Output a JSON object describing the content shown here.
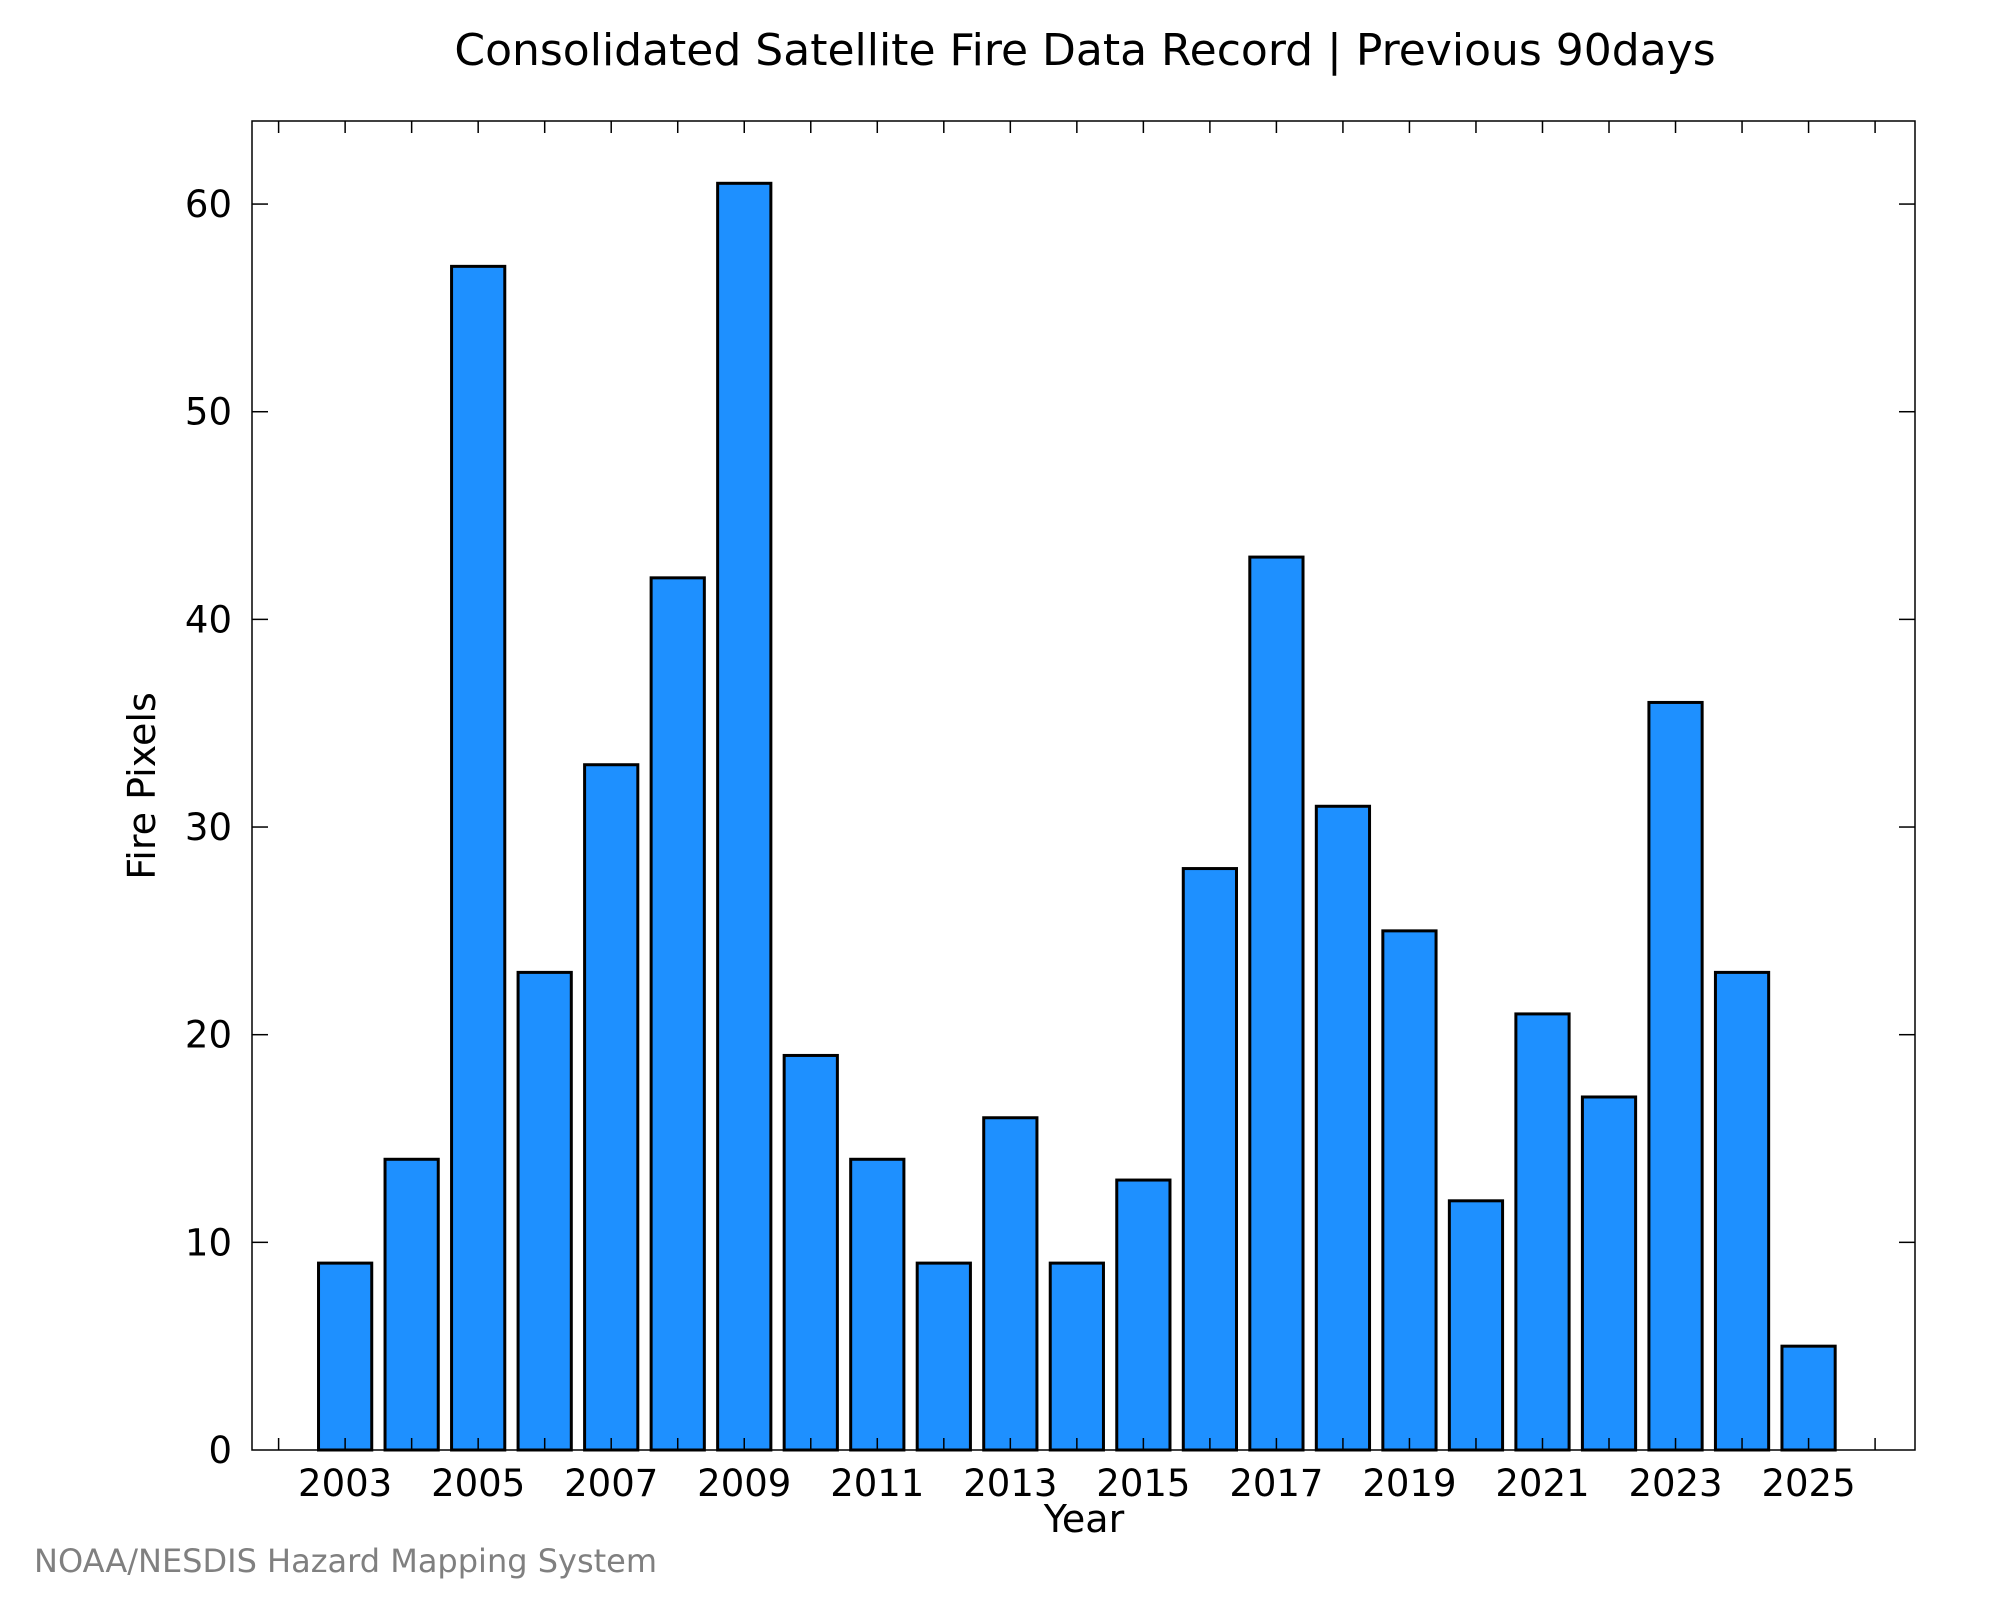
{
  "chart_data": {
    "type": "bar",
    "title": "Consolidated Satellite Fire Data Record | Previous 90days",
    "xlabel": "Year",
    "ylabel": "Fire Pixels",
    "categories": [
      2003,
      2004,
      2005,
      2006,
      2007,
      2008,
      2009,
      2010,
      2011,
      2012,
      2013,
      2014,
      2015,
      2016,
      2017,
      2018,
      2019,
      2020,
      2021,
      2022,
      2023,
      2024,
      2025
    ],
    "values": [
      9,
      14,
      57,
      23,
      33,
      42,
      61,
      19,
      14,
      9,
      16,
      9,
      13,
      28,
      43,
      31,
      25,
      12,
      21,
      17,
      36,
      23,
      5
    ],
    "x_tick_labels": [
      "2003",
      "2005",
      "2007",
      "2009",
      "2011",
      "2013",
      "2015",
      "2017",
      "2019",
      "2021",
      "2023",
      "2025"
    ],
    "y_tick_labels": [
      "0",
      "10",
      "20",
      "30",
      "40",
      "50",
      "60"
    ],
    "ylim": [
      0,
      64
    ],
    "xlim": [
      2001.6,
      2026.6
    ],
    "grid": false,
    "bar_color": "#1e90ff",
    "edge_color": "#000000"
  },
  "footer": "NOAA/NESDIS Hazard Mapping System"
}
